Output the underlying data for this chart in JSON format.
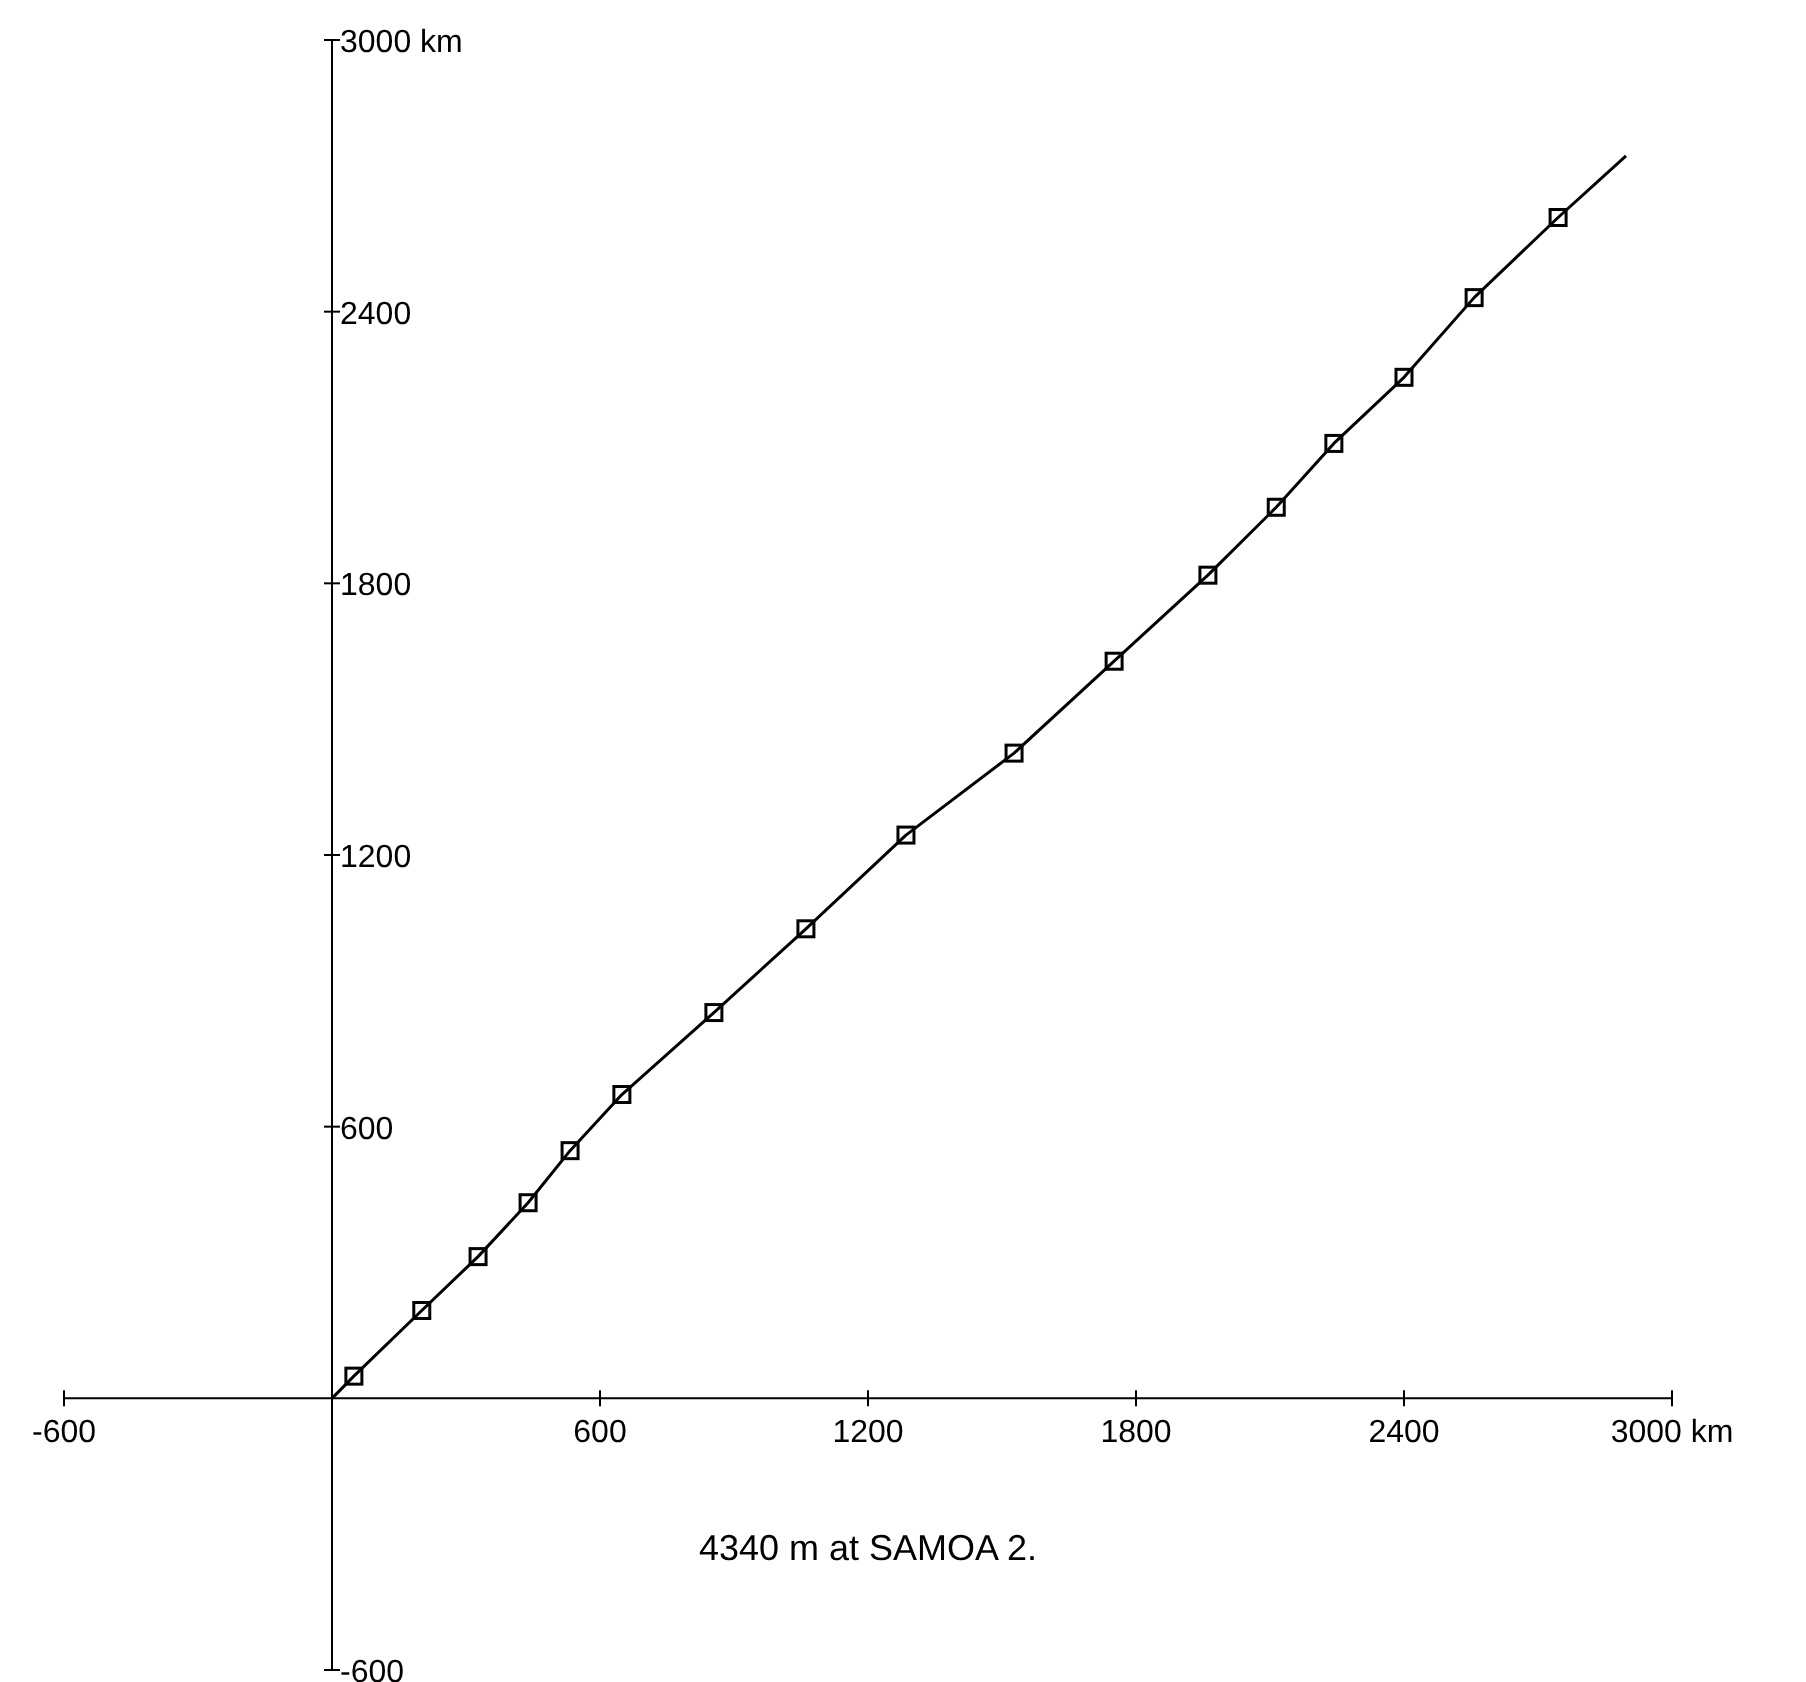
{
  "chart_data": {
    "type": "line",
    "annotations": [
      "4340 m at SAMOA 2."
    ],
    "xlim": [
      -600,
      3000
    ],
    "ylim": [
      -600,
      3000
    ],
    "xticks": [
      -600,
      600,
      1200,
      1800,
      2400,
      {
        "value": 3000,
        "label": "3000 km"
      }
    ],
    "yticks": [
      -600,
      600,
      1200,
      1800,
      2400,
      {
        "value": 3000,
        "label": "3000 km"
      }
    ],
    "grid": false,
    "series": [
      {
        "color": "#000000",
        "marker": "none",
        "line_style": "solid",
        "x": [
          0,
          49,
          201,
          327,
          439,
          533,
          649,
          855,
          1061,
          1285,
          1527,
          1751,
          1961,
          2114,
          2243,
          2400,
          2557,
          2745,
          2897
        ],
        "values": [
          0,
          49,
          194,
          313,
          432,
          547,
          671,
          852,
          1037,
          1244,
          1425,
          1628,
          1818,
          1968,
          2109,
          2255,
          2431,
          2608,
          2744
        ]
      },
      {
        "type": "scatter",
        "color": "#000000",
        "marker": "square",
        "x": [
          49,
          201,
          327,
          439,
          533,
          649,
          855,
          1061,
          1285,
          1527,
          1751,
          1961,
          2114,
          2243,
          2400,
          2557,
          2745
        ],
        "values": [
          49,
          194,
          313,
          432,
          547,
          671,
          852,
          1037,
          1244,
          1425,
          1628,
          1818,
          1968,
          2109,
          2255,
          2431,
          2608
        ]
      }
    ]
  }
}
